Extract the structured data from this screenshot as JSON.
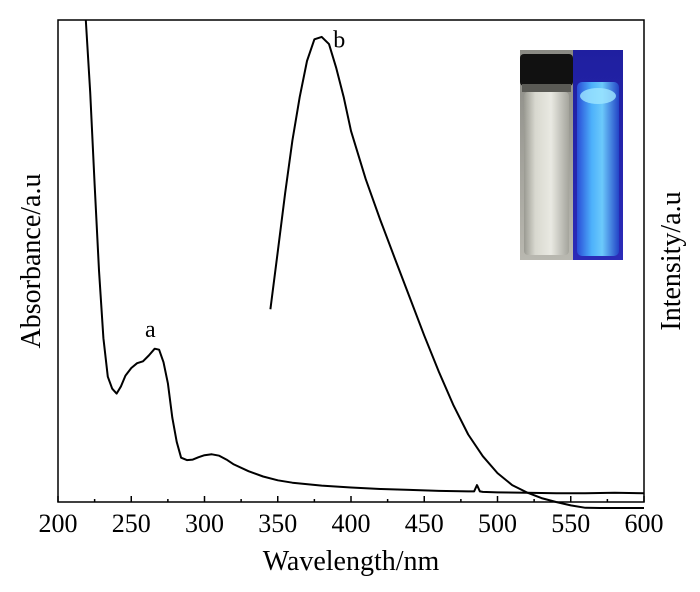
{
  "chart_data": {
    "type": "line",
    "xlabel": "Wavelength/nm",
    "ylabel_left": "Absorbance/a.u",
    "ylabel_right": "Intensity/a.u",
    "xlim": [
      200,
      600
    ],
    "ylim": [
      0,
      1
    ],
    "x_ticks": [
      "200",
      "250",
      "300",
      "350",
      "400",
      "450",
      "500",
      "550",
      "600"
    ],
    "grid": false,
    "series": [
      {
        "name": "",
        "annotation": "a",
        "x": [
          219,
          222,
          225,
          228,
          231,
          234,
          237,
          240,
          243,
          246,
          250,
          254,
          258,
          262,
          266,
          269,
          272,
          275,
          278,
          281,
          284,
          288,
          292,
          296,
          300,
          305,
          310,
          315,
          320,
          330,
          340,
          350,
          360,
          380,
          400,
          420,
          440,
          460,
          480,
          484,
          486,
          488,
          490,
          500,
          520,
          540,
          560,
          580,
          600
        ],
        "y": [
          1.0,
          0.85,
          0.66,
          0.48,
          0.34,
          0.26,
          0.235,
          0.225,
          0.24,
          0.262,
          0.278,
          0.288,
          0.292,
          0.304,
          0.318,
          0.316,
          0.29,
          0.246,
          0.175,
          0.125,
          0.092,
          0.087,
          0.088,
          0.093,
          0.097,
          0.099,
          0.096,
          0.088,
          0.078,
          0.064,
          0.053,
          0.045,
          0.04,
          0.034,
          0.03,
          0.027,
          0.025,
          0.023,
          0.022,
          0.022,
          0.035,
          0.022,
          0.021,
          0.02,
          0.019,
          0.018,
          0.018,
          0.019,
          0.018
        ]
      },
      {
        "name": "",
        "annotation": "b",
        "x": [
          345,
          350,
          355,
          360,
          365,
          370,
          375,
          380,
          385,
          390,
          395,
          400,
          410,
          420,
          430,
          440,
          450,
          460,
          470,
          480,
          490,
          500,
          510,
          520,
          530,
          540,
          550,
          560,
          570,
          580,
          590,
          600
        ],
        "y": [
          0.4,
          0.52,
          0.64,
          0.75,
          0.84,
          0.915,
          0.96,
          0.965,
          0.95,
          0.9,
          0.84,
          0.77,
          0.67,
          0.585,
          0.505,
          0.425,
          0.345,
          0.27,
          0.2,
          0.14,
          0.095,
          0.06,
          0.035,
          0.02,
          0.008,
          0.0,
          -0.007,
          -0.012,
          -0.015,
          -0.018,
          -0.02,
          -0.022
        ]
      }
    ],
    "inset": "photo of two vials: clear solution in daylight (left), blue emission under UV light (right)"
  }
}
